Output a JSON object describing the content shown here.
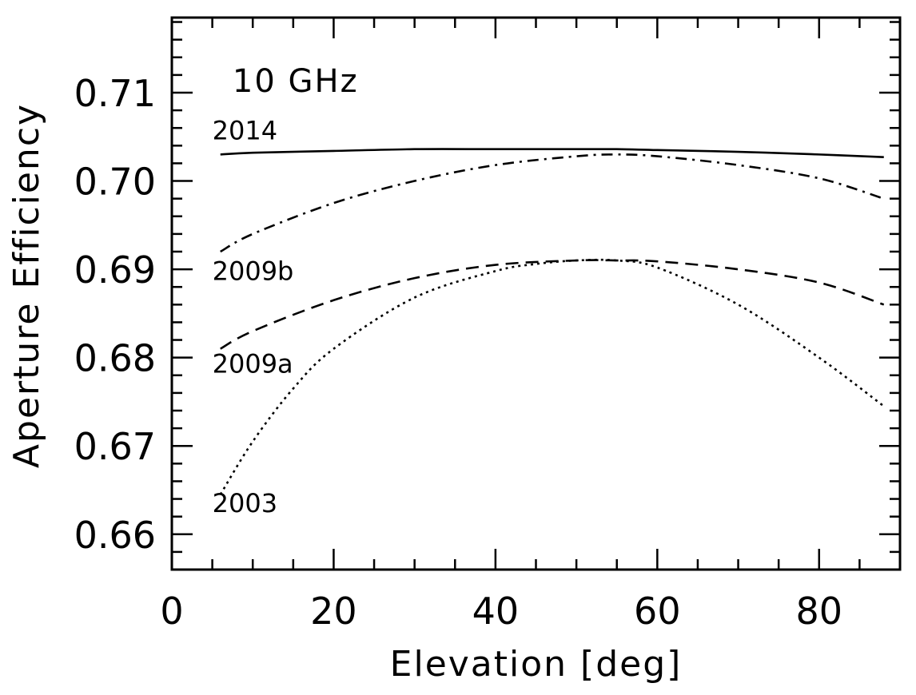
{
  "chart_data": {
    "type": "line",
    "title": "",
    "annotation": "10 GHz",
    "xlabel": "Elevation [deg]",
    "ylabel": "Aperture Efficiency",
    "xlim": [
      0,
      90
    ],
    "ylim": [
      0.656,
      0.7185
    ],
    "xticks": [
      0,
      20,
      40,
      60,
      80
    ],
    "xtick_labels": [
      "0",
      "20",
      "40",
      "60",
      "80"
    ],
    "yticks": [
      0.66,
      0.67,
      0.68,
      0.69,
      0.7,
      0.71
    ],
    "ytick_labels": [
      "0.66",
      "0.67",
      "0.68",
      "0.69",
      "0.70",
      "0.71"
    ],
    "series": [
      {
        "name": "2014",
        "style": "solid",
        "x": [
          6,
          10,
          20,
          30,
          40,
          50,
          55,
          60,
          70,
          80,
          88
        ],
        "y": [
          0.703,
          0.7032,
          0.7034,
          0.7036,
          0.7036,
          0.7036,
          0.7036,
          0.7035,
          0.7033,
          0.703,
          0.7027
        ]
      },
      {
        "name": "2009b",
        "style": "dashdot",
        "x": [
          6,
          10,
          20,
          30,
          40,
          50,
          55,
          60,
          70,
          80,
          88
        ],
        "y": [
          0.692,
          0.694,
          0.6975,
          0.7,
          0.7018,
          0.7028,
          0.703,
          0.7028,
          0.7018,
          0.7003,
          0.698
        ]
      },
      {
        "name": "2009a",
        "style": "dashed",
        "x": [
          6,
          10,
          20,
          30,
          40,
          50,
          55,
          60,
          70,
          80,
          88
        ],
        "y": [
          0.681,
          0.683,
          0.6865,
          0.689,
          0.6905,
          0.691,
          0.691,
          0.6909,
          0.69,
          0.6885,
          0.686
        ]
      },
      {
        "name": "2003",
        "style": "dotted",
        "x": [
          6,
          10,
          15,
          20,
          30,
          40,
          45,
          50,
          55,
          60,
          70,
          80,
          88
        ],
        "y": [
          0.6645,
          0.6705,
          0.6765,
          0.681,
          0.6868,
          0.6898,
          0.6906,
          0.691,
          0.691,
          0.6902,
          0.686,
          0.68,
          0.6745
        ]
      }
    ],
    "series_labels": [
      {
        "text": "2014",
        "x": 5,
        "y": 0.7047
      },
      {
        "text": "2009b",
        "x": 5,
        "y": 0.6888
      },
      {
        "text": "2009a",
        "x": 5,
        "y": 0.6783
      },
      {
        "text": "2003",
        "x": 5,
        "y": 0.6625
      }
    ],
    "annotation_pos": {
      "x": 7.5,
      "y": 0.7101
    }
  }
}
